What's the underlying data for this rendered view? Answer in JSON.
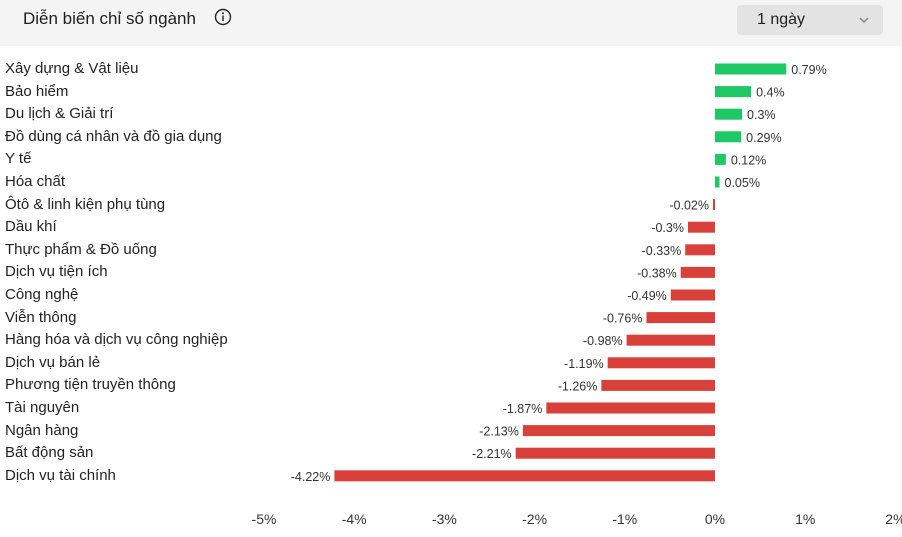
{
  "header": {
    "title": "Diễn biến chỉ số ngành",
    "info_icon": "info-icon",
    "period": {
      "selected": "1 ngày",
      "icon": "chevron-down-icon"
    }
  },
  "colors": {
    "positive": "#1ec864",
    "negative": "#d9403a",
    "header_bg": "#f4f4f4",
    "select_bg": "#e3e3e3"
  },
  "chart_data": {
    "type": "bar",
    "orientation": "horizontal",
    "categories": [
      "Xây dựng & Vật liệu",
      "Bảo hiểm",
      "Du lịch & Giải trí",
      "Đồ dùng cá nhân và đồ gia dụng",
      "Y tế",
      "Hóa chất",
      "Ôtô & linh kiện phụ tùng",
      "Dầu khí",
      "Thực phẩm & Đồ uống",
      "Dịch vụ tiện ích",
      "Công nghệ",
      "Viễn thông",
      "Hàng hóa và dịch vụ công nghiệp",
      "Dịch vụ bán lẻ",
      "Phương tiện truyền thông",
      "Tài nguyên",
      "Ngân hàng",
      "Bất động sản",
      "Dịch vụ tài chính"
    ],
    "values": [
      0.79,
      0.4,
      0.3,
      0.29,
      0.12,
      0.05,
      -0.02,
      -0.3,
      -0.33,
      -0.38,
      -0.49,
      -0.76,
      -0.98,
      -1.19,
      -1.26,
      -1.87,
      -2.13,
      -2.21,
      -4.22
    ],
    "value_labels": [
      "0.79%",
      "0.4%",
      "0.3%",
      "0.29%",
      "0.12%",
      "0.05%",
      "-0.02%",
      "-0.3%",
      "-0.33%",
      "-0.38%",
      "-0.49%",
      "-0.76%",
      "-0.98%",
      "-1.19%",
      "-1.26%",
      "-1.87%",
      "-2.13%",
      "-2.21%",
      "-4.22%"
    ],
    "xlim": [
      -5,
      2
    ],
    "xticks": [
      -5,
      -4,
      -3,
      -2,
      -1,
      0,
      1,
      2
    ],
    "xtick_labels": [
      "-5%",
      "-4%",
      "-3%",
      "-2%",
      "-1%",
      "0%",
      "1%",
      "2%"
    ],
    "grid": false
  }
}
